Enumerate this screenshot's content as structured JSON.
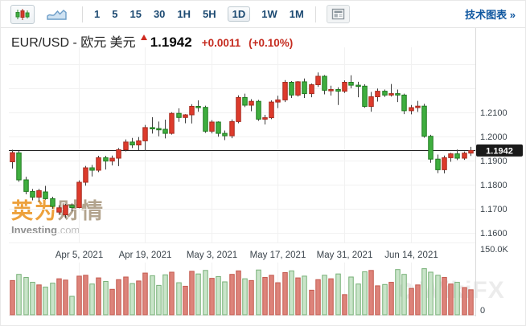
{
  "toolbar": {
    "chart_type_buttons": [
      {
        "label": "candlestick",
        "active": true
      },
      {
        "label": "line-area",
        "active": false
      }
    ],
    "intervals": [
      "1",
      "5",
      "15",
      "30",
      "1H",
      "5H",
      "1D",
      "1W",
      "1M"
    ],
    "selected_interval": "1D",
    "technical_link": "技术图表 »"
  },
  "header": {
    "symbol_title": "EUR/USD - 欧元 美元",
    "direction": "up",
    "last_price": "1.1942",
    "change": "+0.0011",
    "change_pct": "(+0.10%)",
    "change_color": "#c52b1f"
  },
  "watermarks": {
    "investing_cn": "英为财情",
    "investing_en": "Investing",
    "investing_domain": ".com",
    "corner_brand": "WikiFX"
  },
  "chart_data": {
    "type": "candlestick+volume",
    "symbol": "EUR/USD",
    "interval": "1D",
    "color_convention": "red = up, green = down (Chinese convention)",
    "current_price": 1.1942,
    "current_price_line": 1.1942,
    "price_marker": {
      "label": "1.1942",
      "value": 1.1942,
      "bg": "#1a1a1a",
      "fg": "#ffffff"
    },
    "y_ticks": [
      {
        "label": "1.2100",
        "value": 1.21
      },
      {
        "label": "1.2000",
        "value": 1.2
      },
      {
        "label": "1.1900",
        "value": 1.19
      },
      {
        "label": "1.1800",
        "value": 1.18
      },
      {
        "label": "1.1700",
        "value": 1.17
      },
      {
        "label": "1.1600",
        "value": 1.16
      }
    ],
    "grid_prices": [
      1.23,
      1.22,
      1.21,
      1.2,
      1.19,
      1.18,
      1.17,
      1.16
    ],
    "y_axis_range": [
      1.155,
      1.237
    ],
    "volume_ticks": [
      {
        "label": "150.0K",
        "value": 150
      },
      {
        "label": "0",
        "value": 0
      }
    ],
    "volume_axis_max_k": 150,
    "x_labels": [
      {
        "text": "Apr 5, 2021",
        "index": 10
      },
      {
        "text": "Apr 19, 2021",
        "index": 20
      },
      {
        "text": "May 3, 2021",
        "index": 30
      },
      {
        "text": "May 17, 2021",
        "index": 40
      },
      {
        "text": "May 31, 2021",
        "index": 50
      },
      {
        "text": "Jun 14, 2021",
        "index": 60
      }
    ],
    "colors": {
      "up_fill": "#dd3b2c",
      "up_border": "#a8291d",
      "down_fill": "#3fae3f",
      "down_border": "#1f7a1f",
      "wick": "#3f3f3f",
      "vol_up_fill": "#dd837a",
      "vol_up_border": "#c45a4f",
      "vol_down_fill": "#c9e4c9",
      "vol_down_border": "#77b077",
      "grid": "#f1f1f1",
      "axis_line": "#d9d9d9",
      "price_line": "#222222",
      "tick_text": "#3b444c"
    },
    "candles": {
      "columns": [
        "open",
        "high",
        "low",
        "close",
        "volume_k"
      ],
      "rows": [
        [
          1.1895,
          1.1945,
          1.1867,
          1.1933,
          78
        ],
        [
          1.1932,
          1.194,
          1.1812,
          1.182,
          92
        ],
        [
          1.182,
          1.1833,
          1.176,
          1.1772,
          85
        ],
        [
          1.1772,
          1.1782,
          1.1735,
          1.1748,
          74
        ],
        [
          1.1748,
          1.1783,
          1.173,
          1.1775,
          68
        ],
        [
          1.177,
          1.1795,
          1.1738,
          1.1742,
          63
        ],
        [
          1.1742,
          1.175,
          1.17,
          1.171,
          72
        ],
        [
          1.1686,
          1.1715,
          1.1675,
          1.1704,
          82
        ],
        [
          1.1675,
          1.172,
          1.1662,
          1.1714,
          79
        ],
        [
          1.1714,
          1.1722,
          1.169,
          1.1705,
          42
        ],
        [
          1.1705,
          1.1818,
          1.1702,
          1.181,
          88
        ],
        [
          1.181,
          1.1878,
          1.1796,
          1.187,
          90
        ],
        [
          1.187,
          1.1882,
          1.1834,
          1.186,
          70
        ],
        [
          1.186,
          1.192,
          1.1852,
          1.1912,
          84
        ],
        [
          1.1912,
          1.192,
          1.1863,
          1.1898,
          76
        ],
        [
          1.1898,
          1.1921,
          1.188,
          1.191,
          58
        ],
        [
          1.191,
          1.1952,
          1.1877,
          1.1945,
          80
        ],
        [
          1.1945,
          1.1988,
          1.1938,
          1.1977,
          86
        ],
        [
          1.1977,
          1.1994,
          1.1952,
          1.1965,
          71
        ],
        [
          1.1965,
          1.1998,
          1.1943,
          1.1982,
          77
        ],
        [
          1.1982,
          1.2048,
          1.1941,
          1.2037,
          95
        ],
        [
          1.2037,
          1.208,
          1.2012,
          1.2033,
          89
        ],
        [
          1.2033,
          1.2062,
          1.2001,
          1.203,
          67
        ],
        [
          1.203,
          1.207,
          1.1992,
          1.2013,
          91
        ],
        [
          1.2013,
          1.2101,
          1.2008,
          1.2096,
          97
        ],
        [
          1.2096,
          1.2117,
          1.2061,
          1.2079,
          73
        ],
        [
          1.2079,
          1.2093,
          1.2055,
          1.209,
          65
        ],
        [
          1.209,
          1.2134,
          1.2054,
          1.2125,
          99
        ],
        [
          1.2125,
          1.215,
          1.2103,
          1.2121,
          93
        ],
        [
          1.2121,
          1.2128,
          1.2015,
          1.2022,
          101
        ],
        [
          1.2022,
          1.2068,
          1.2013,
          1.206,
          83
        ],
        [
          1.206,
          1.2063,
          1.1999,
          1.2013,
          87
        ],
        [
          1.2013,
          1.2025,
          1.1985,
          1.2003,
          75
        ],
        [
          1.2003,
          1.2071,
          1.1993,
          1.2062,
          92
        ],
        [
          1.2062,
          1.2171,
          1.2055,
          1.2162,
          100
        ],
        [
          1.2162,
          1.2178,
          1.2122,
          1.213,
          82
        ],
        [
          1.213,
          1.2155,
          1.2105,
          1.2146,
          78
        ],
        [
          1.2146,
          1.2152,
          1.2065,
          1.2072,
          102
        ],
        [
          1.2072,
          1.209,
          1.205,
          1.2078,
          85
        ],
        [
          1.2078,
          1.215,
          1.2072,
          1.2143,
          90
        ],
        [
          1.2143,
          1.2169,
          1.2118,
          1.2152,
          73
        ],
        [
          1.2152,
          1.2234,
          1.2143,
          1.2225,
          96
        ],
        [
          1.2225,
          1.223,
          1.216,
          1.2172,
          100
        ],
        [
          1.2172,
          1.223,
          1.2166,
          1.2227,
          84
        ],
        [
          1.2227,
          1.2241,
          1.216,
          1.2178,
          88
        ],
        [
          1.2178,
          1.222,
          1.2163,
          1.2215,
          56
        ],
        [
          1.2215,
          1.2266,
          1.2206,
          1.225,
          80
        ],
        [
          1.225,
          1.2255,
          1.2175,
          1.2192,
          90
        ],
        [
          1.2192,
          1.2211,
          1.217,
          1.2195,
          82
        ],
        [
          1.2195,
          1.2204,
          1.2131,
          1.2188,
          93
        ],
        [
          1.2188,
          1.2233,
          1.2181,
          1.2225,
          46
        ],
        [
          1.2225,
          1.2254,
          1.22,
          1.2213,
          86
        ],
        [
          1.2213,
          1.2227,
          1.2163,
          1.2209,
          70
        ],
        [
          1.2209,
          1.2217,
          1.2119,
          1.2125,
          98
        ],
        [
          1.2125,
          1.2185,
          1.2103,
          1.2165,
          101
        ],
        [
          1.2165,
          1.2199,
          1.2145,
          1.2188,
          66
        ],
        [
          1.2188,
          1.2195,
          1.2164,
          1.2172,
          69
        ],
        [
          1.2172,
          1.2218,
          1.2166,
          1.2178,
          74
        ],
        [
          1.2178,
          1.2195,
          1.2143,
          1.2172,
          103
        ],
        [
          1.2172,
          1.2178,
          1.2093,
          1.2107,
          92
        ],
        [
          1.2107,
          1.2131,
          1.2092,
          1.212,
          60
        ],
        [
          1.212,
          1.2148,
          1.2102,
          1.2126,
          68
        ],
        [
          1.2126,
          1.2136,
          1.1995,
          1.2001,
          105
        ],
        [
          1.2001,
          1.2007,
          1.1891,
          1.1906,
          97
        ],
        [
          1.1906,
          1.1925,
          1.1848,
          1.1862,
          90
        ],
        [
          1.1862,
          1.1921,
          1.1847,
          1.1912,
          85
        ],
        [
          1.1912,
          1.1932,
          1.1895,
          1.1928,
          70
        ],
        [
          1.1928,
          1.1946,
          1.1902,
          1.191,
          74
        ],
        [
          1.191,
          1.1938,
          1.1903,
          1.1931,
          62
        ],
        [
          1.1931,
          1.1957,
          1.1919,
          1.1942,
          57
        ]
      ]
    }
  }
}
